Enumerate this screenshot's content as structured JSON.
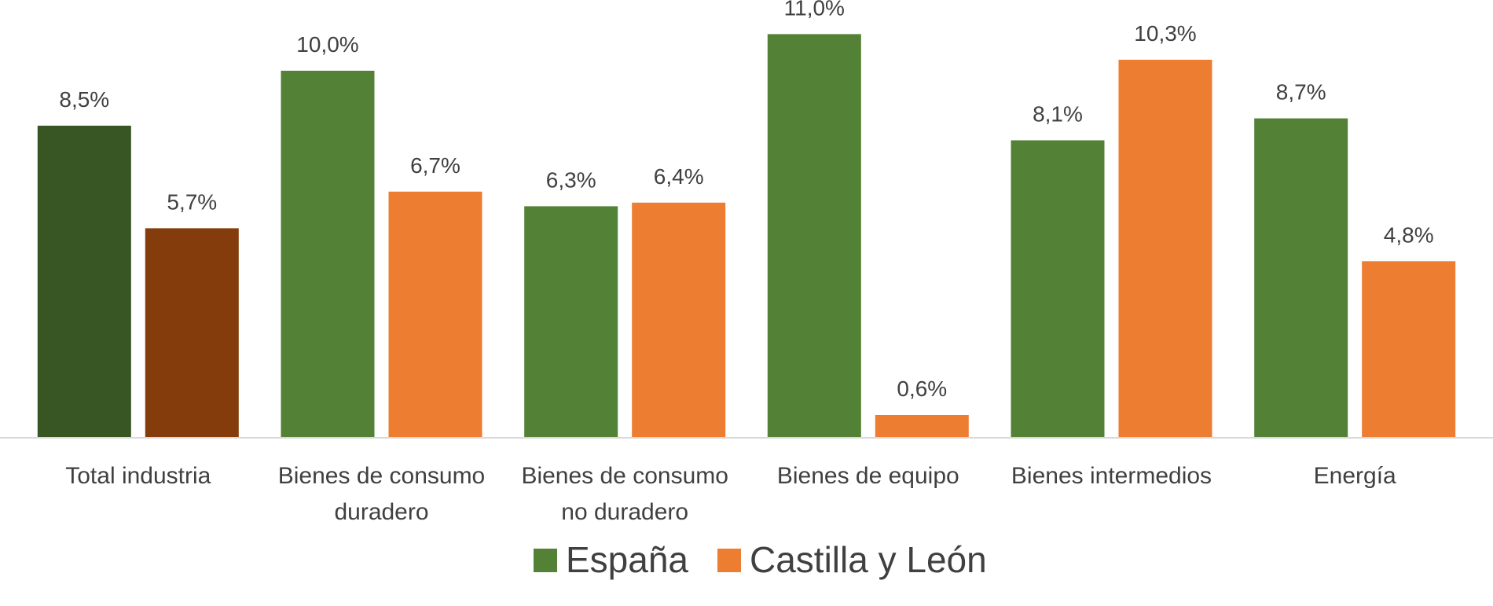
{
  "chart_data": {
    "type": "bar",
    "title": "",
    "xlabel": "",
    "ylabel": "",
    "ylim": [
      0,
      11.6
    ],
    "grid": false,
    "legend_position": "bottom",
    "categories": [
      [
        "Total industria"
      ],
      [
        "Bienes de consumo",
        "duradero"
      ],
      [
        "Bienes de consumo",
        "no duradero"
      ],
      [
        "Bienes de equipo"
      ],
      [
        "Bienes intermedios"
      ],
      [
        "Energía"
      ]
    ],
    "series": [
      {
        "name": "España",
        "color": "#538135",
        "values": [
          8.5,
          10.0,
          6.3,
          11.0,
          8.1,
          8.7
        ],
        "labels": [
          "8,5%",
          "10,0%",
          "6,3%",
          "11,0%",
          "8,1%",
          "8,7%"
        ]
      },
      {
        "name": "Castilla y León",
        "color": "#ED7D31",
        "values": [
          5.7,
          6.7,
          6.4,
          0.6,
          10.3,
          4.8
        ],
        "labels": [
          "5,7%",
          "6,7%",
          "6,4%",
          "0,6%",
          "10,3%",
          "4,8%"
        ]
      }
    ],
    "point_colors": {
      "0": [
        "#375623",
        "#843C0C"
      ]
    }
  },
  "colors": {
    "axis_line": "#D9D9D9",
    "text": "#404040"
  }
}
